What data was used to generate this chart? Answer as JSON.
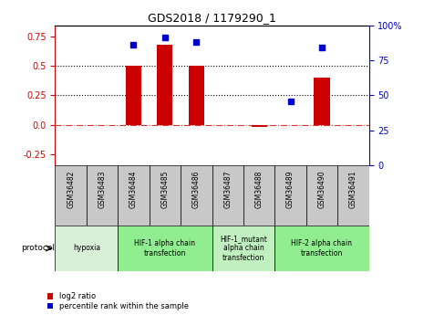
{
  "title": "GDS2018 / 1179290_1",
  "samples": [
    "GSM36482",
    "GSM36483",
    "GSM36484",
    "GSM36485",
    "GSM36486",
    "GSM36487",
    "GSM36488",
    "GSM36489",
    "GSM36490",
    "GSM36491"
  ],
  "log2_ratio": [
    0.0,
    0.0,
    0.5,
    0.68,
    0.5,
    0.0,
    -0.02,
    0.0,
    0.4,
    0.0
  ],
  "percentile_rank": [
    null,
    null,
    86,
    91,
    88,
    null,
    null,
    46,
    84,
    null
  ],
  "ylim_left": [
    -0.35,
    0.85
  ],
  "ylim_right": [
    0,
    100
  ],
  "left_ticks": [
    -0.25,
    0.0,
    0.25,
    0.5,
    0.75
  ],
  "right_ticks": [
    0,
    25,
    50,
    75,
    100
  ],
  "hlines_dotted": [
    0.25,
    0.5
  ],
  "hline_dashdot": 0.0,
  "protocols": [
    {
      "label": "hypoxia",
      "start": 0,
      "end": 2,
      "color": "#d8f0d8"
    },
    {
      "label": "HIF-1 alpha chain\ntransfection",
      "start": 2,
      "end": 5,
      "color": "#90ee90"
    },
    {
      "label": "HIF-1_mutant\nalpha chain\ntransfection",
      "start": 5,
      "end": 7,
      "color": "#c0f0c0"
    },
    {
      "label": "HIF-2 alpha chain\ntransfection",
      "start": 7,
      "end": 10,
      "color": "#90ee90"
    }
  ],
  "bar_color": "#cc0000",
  "dot_color": "#0000cc",
  "bar_width": 0.5,
  "tick_color_left": "#cc0000",
  "tick_color_right": "#0000cc",
  "sample_box_color": "#c8c8c8",
  "legend_items": [
    {
      "label": "log2 ratio",
      "color": "#cc0000"
    },
    {
      "label": "percentile rank within the sample",
      "color": "#0000cc"
    }
  ]
}
